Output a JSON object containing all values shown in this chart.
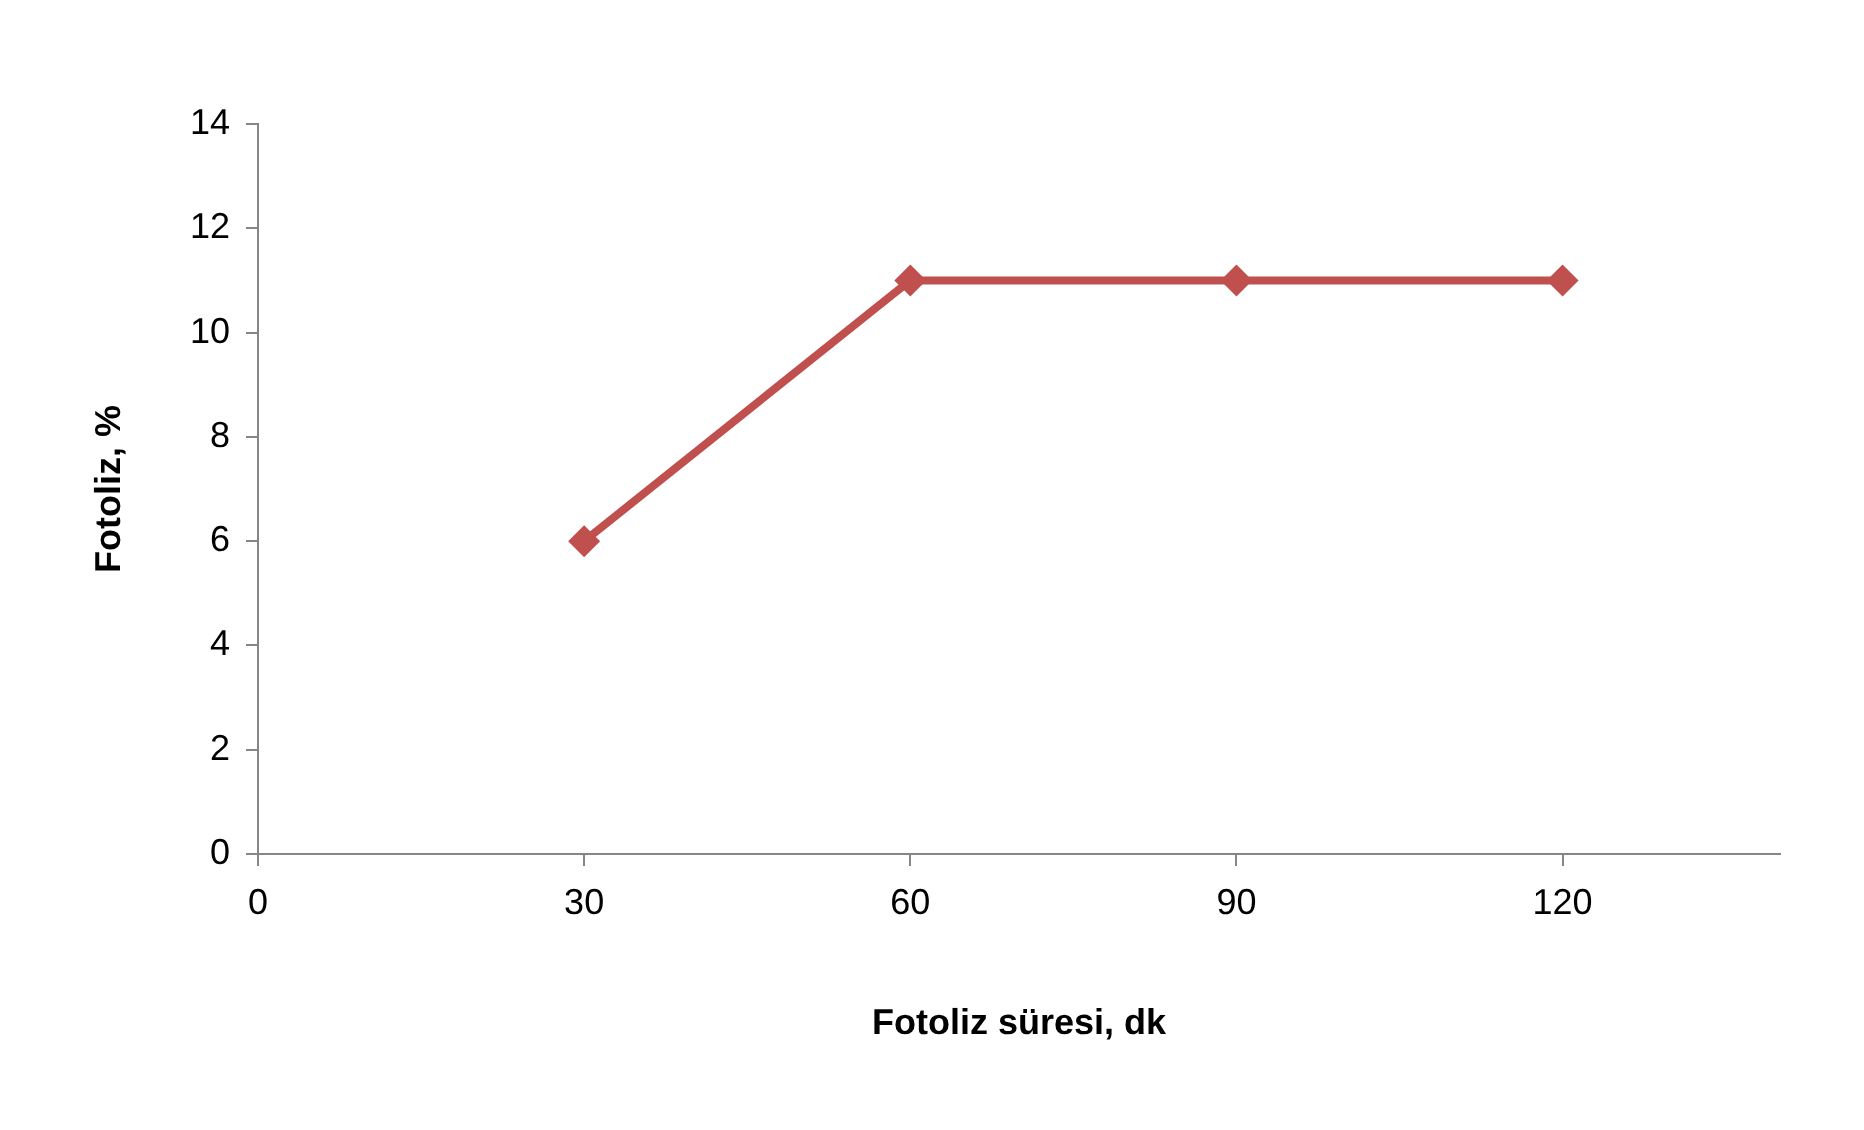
{
  "chart_data": {
    "type": "line",
    "xlabel": "Fotoliz süresi, dk",
    "ylabel": "Fotoliz, %",
    "x": [
      30,
      60,
      90,
      120
    ],
    "series": [
      {
        "color": "#c0504d",
        "values": [
          6,
          11,
          11,
          11
        ]
      }
    ],
    "xlim": [
      0,
      140
    ],
    "xticks": [
      0,
      30,
      60,
      90,
      120
    ],
    "ylim": [
      0,
      14
    ],
    "yticks": [
      0,
      2,
      4,
      6,
      8,
      10,
      12,
      14
    ],
    "grid": false,
    "legend": false,
    "marker": "diamond",
    "line_style": "solid"
  }
}
